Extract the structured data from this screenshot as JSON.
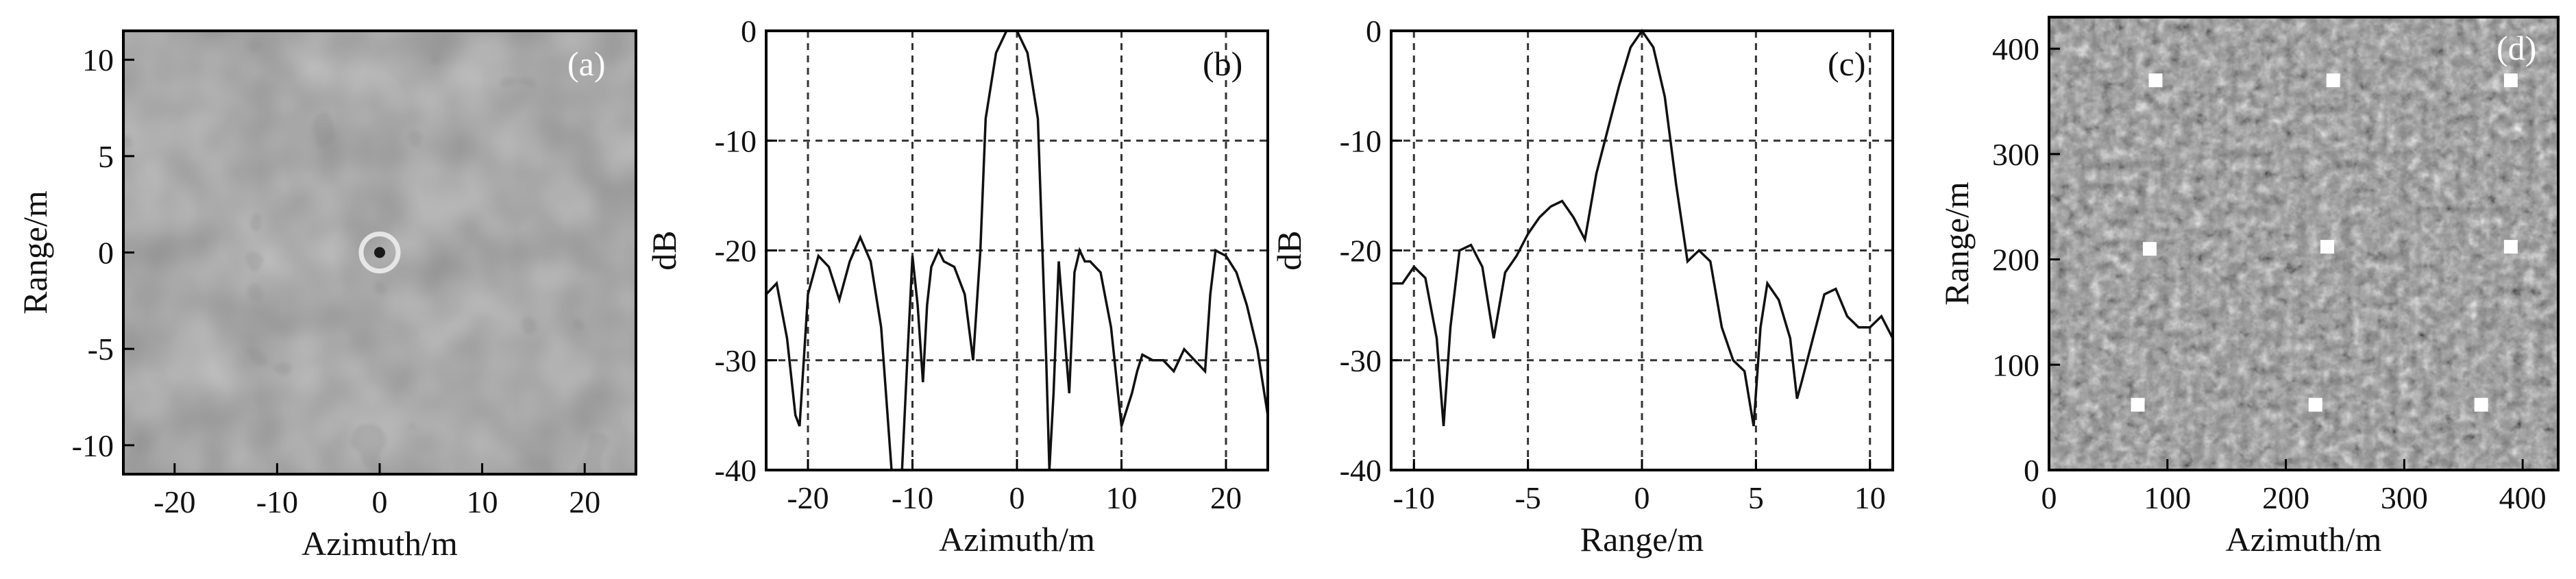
{
  "chart_data": [
    {
      "panel": "(a)",
      "type": "heatmap",
      "xlabel": "Azimuth/m",
      "ylabel": "Range/m",
      "xlim": [
        -25,
        25
      ],
      "ylim": [
        -11.5,
        11.5
      ],
      "xticks": [
        "-20",
        "-10",
        "0",
        "10",
        "20"
      ],
      "xtick_values": [
        -20,
        -10,
        0,
        10,
        20
      ],
      "yticks": [
        "10",
        "5",
        "0",
        "-5",
        "-10"
      ],
      "ytick_values": [
        10,
        5,
        0,
        -5,
        -10
      ],
      "point_target": {
        "x": 0,
        "y": 0
      },
      "colors": {
        "background": "#8e8e8e",
        "dark": "#5e5e5e",
        "light": "#a8a8a8",
        "ring": "#e6e6e6"
      }
    },
    {
      "panel": "(b)",
      "type": "line",
      "xlabel": "Azimuth/m",
      "ylabel": "dB",
      "xlim": [
        -24,
        24
      ],
      "ylim": [
        -40,
        0
      ],
      "grid": true,
      "xticks": [
        "-20",
        "-10",
        "0",
        "10",
        "20"
      ],
      "xtick_values": [
        -20,
        -10,
        0,
        10,
        20
      ],
      "yticks": [
        "0",
        "-10",
        "-20",
        "-30",
        "-40"
      ],
      "ytick_values": [
        0,
        -10,
        -20,
        -30,
        -40
      ],
      "x": [
        -24,
        -23,
        -22,
        -21.2,
        -20.8,
        -20,
        -19,
        -18,
        -17,
        -16,
        -15,
        -14,
        -13,
        -12,
        -11.5,
        -11,
        -10.5,
        -10,
        -9.5,
        -9,
        -8.6,
        -8.2,
        -7.5,
        -7,
        -6,
        -5,
        -4.2,
        -3.5,
        -3,
        -2,
        -1,
        0,
        1,
        2,
        2.8,
        3.1,
        3.5,
        4,
        4.5,
        5,
        5.5,
        6,
        6.5,
        7,
        8,
        9,
        10,
        11,
        11.5,
        12,
        13,
        14,
        15,
        16,
        17,
        18,
        18.5,
        19,
        20,
        21,
        22,
        23,
        24
      ],
      "y": [
        -24,
        -23,
        -28,
        -35,
        -36,
        -24,
        -20.5,
        -21.5,
        -24.5,
        -21,
        -18.8,
        -21,
        -27,
        -40,
        -40,
        -40,
        -30,
        -20.5,
        -25,
        -32,
        -25,
        -21.5,
        -20,
        -21,
        -21.5,
        -24,
        -30,
        -20,
        -8,
        -2,
        0,
        0,
        -2,
        -8,
        -30,
        -40,
        -33,
        -21,
        -27,
        -33,
        -22,
        -20,
        -21,
        -21,
        -22,
        -27,
        -36,
        -33,
        -31,
        -29.5,
        -30,
        -30,
        -31,
        -29,
        -30,
        -31,
        -24,
        -20,
        -20.5,
        -22,
        -25,
        -29,
        -35
      ]
    },
    {
      "panel": "(c)",
      "type": "line",
      "xlabel": "Range/m",
      "ylabel": "dB",
      "xlim": [
        -11,
        11
      ],
      "ylim": [
        -40,
        0
      ],
      "grid": true,
      "xticks": [
        "-10",
        "-5",
        "0",
        "5",
        "10"
      ],
      "xtick_values": [
        -10,
        -5,
        0,
        5,
        10
      ],
      "yticks": [
        "0",
        "-10",
        "-20",
        "-30",
        "-40"
      ],
      "ytick_values": [
        0,
        -10,
        -20,
        -30,
        -40
      ],
      "x": [
        -11,
        -10.5,
        -10,
        -9.5,
        -9,
        -8.7,
        -8.4,
        -8,
        -7.5,
        -7,
        -6.5,
        -6,
        -5.5,
        -5,
        -4.5,
        -4,
        -3.5,
        -3,
        -2.5,
        -2,
        -1.5,
        -1,
        -0.5,
        0,
        0.5,
        1,
        1.5,
        2,
        2.5,
        3,
        3.5,
        4,
        4.5,
        4.9,
        5.2,
        5.5,
        6,
        6.5,
        6.8,
        7,
        7.5,
        8,
        8.5,
        9,
        9.5,
        10,
        10.5,
        11
      ],
      "y": [
        -23,
        -23,
        -21.5,
        -22.5,
        -28,
        -36,
        -27,
        -20,
        -19.5,
        -21.5,
        -28,
        -22,
        -20.5,
        -18.5,
        -17,
        -16,
        -15.5,
        -17,
        -19,
        -13,
        -9,
        -5,
        -1.5,
        0,
        -1.5,
        -6,
        -14,
        -21,
        -20,
        -21,
        -27,
        -30,
        -31,
        -36,
        -27,
        -23,
        -24.5,
        -28,
        -33.5,
        -32,
        -28,
        -24,
        -23.5,
        -26,
        -27,
        -27,
        -26,
        -28
      ]
    },
    {
      "panel": "(d)",
      "type": "heatmap",
      "xlabel": "Azimuth/m",
      "ylabel": "Range/m",
      "xlim": [
        0,
        430
      ],
      "ylim": [
        0,
        430
      ],
      "xticks": [
        "0",
        "100",
        "200",
        "300",
        "400"
      ],
      "xtick_values": [
        0,
        100,
        200,
        300,
        400
      ],
      "yticks": [
        "0",
        "100",
        "200",
        "300",
        "400"
      ],
      "ytick_values": [
        0,
        100,
        200,
        300,
        400
      ],
      "point_targets": [
        {
          "x": 90,
          "y": 370
        },
        {
          "x": 240,
          "y": 370
        },
        {
          "x": 390,
          "y": 370
        },
        {
          "x": 85,
          "y": 210
        },
        {
          "x": 235,
          "y": 212
        },
        {
          "x": 390,
          "y": 212
        },
        {
          "x": 75,
          "y": 62
        },
        {
          "x": 225,
          "y": 62
        },
        {
          "x": 365,
          "y": 62
        }
      ],
      "colors": {
        "background": "#8a8a8a",
        "target": "#ffffff"
      }
    }
  ]
}
